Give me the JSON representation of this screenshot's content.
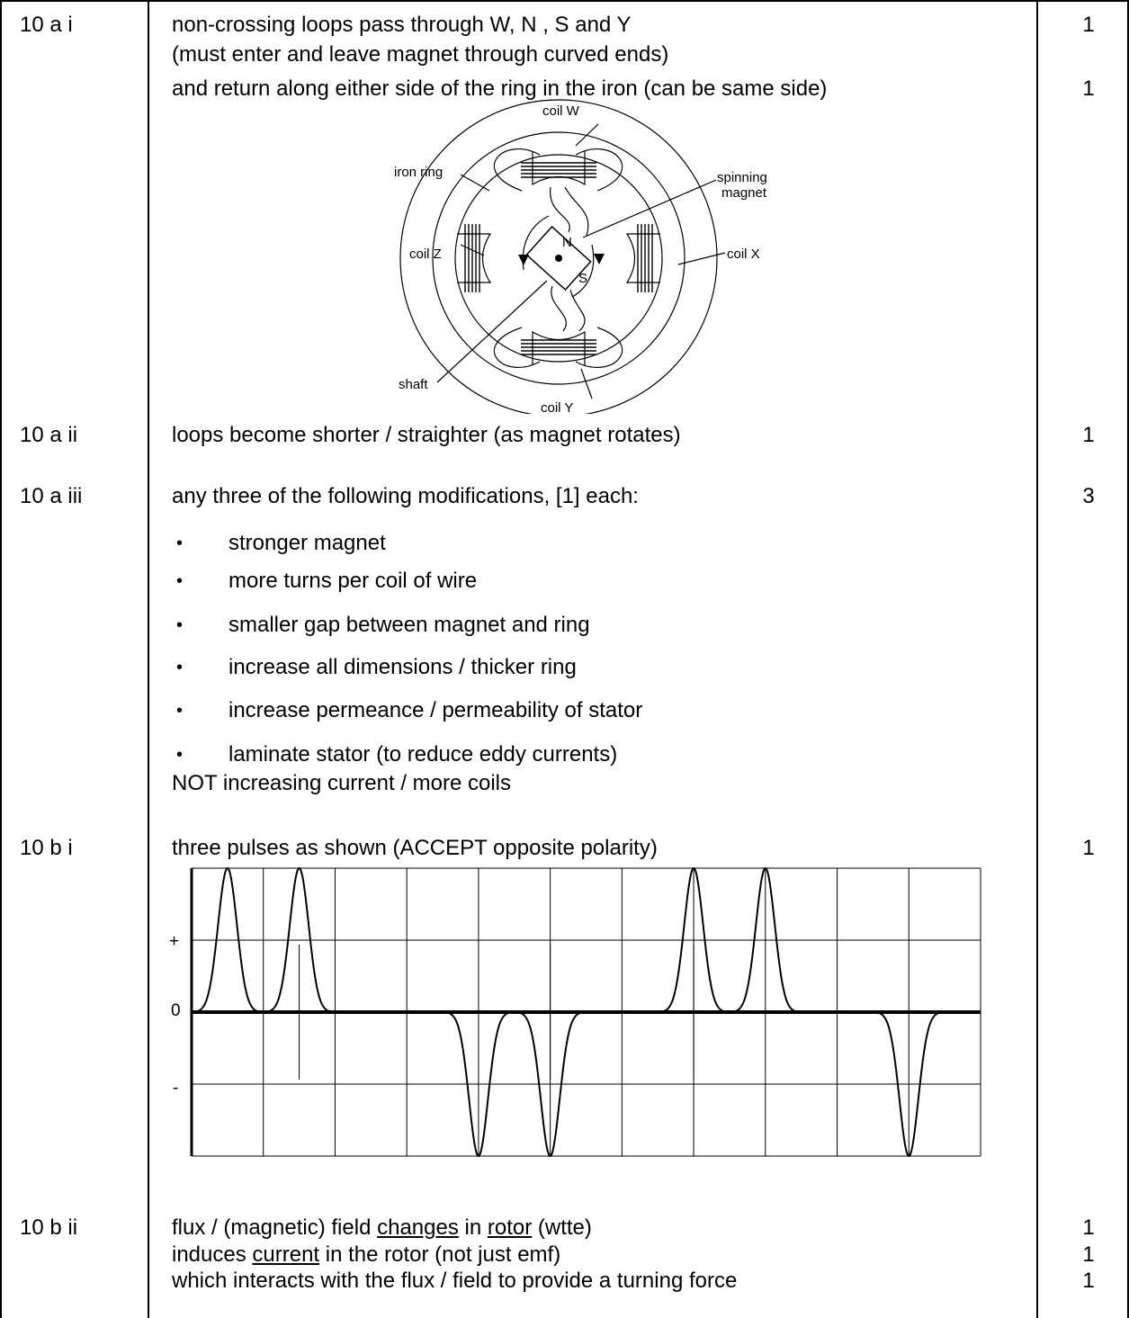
{
  "rows": {
    "a_i": {
      "question": "10 a i",
      "lines": [
        "non-crossing loops pass through W, N , S and Y",
        "(must enter and leave magnet through curved ends)",
        "and return along either side of the ring in the iron (can be same side)"
      ],
      "marks": [
        "1",
        "1"
      ]
    },
    "diagram": {
      "labels": {
        "coil_w": "coil W",
        "iron_ring": "iron ring",
        "spinning_magnet": [
          "spinning",
          "magnet"
        ],
        "coil_z": "coil Z",
        "coil_x": "coil X",
        "n": "N",
        "s": "S",
        "shaft": "shaft",
        "coil_y": "coil Y"
      }
    },
    "a_ii": {
      "question": "10 a ii",
      "text": "loops become shorter / straighter (as magnet rotates)",
      "mark": "1"
    },
    "a_iii": {
      "question": "10 a iii",
      "intro": "any three of the following modifications, [1] each:",
      "mark": "3",
      "bullet_symbol": "•",
      "bullets": [
        "stronger magnet",
        "more turns per coil of wire",
        "smaller gap between magnet and ring",
        "increase all dimensions / thicker ring",
        "increase permeance / permeability of stator",
        "laminate stator (to reduce eddy currents)"
      ],
      "not_line": "NOT increasing current / more coils"
    },
    "b_i": {
      "question": "10 b i",
      "text": "three pulses as shown (ACCEPT opposite polarity)",
      "mark": "1"
    },
    "b_ii": {
      "question": "10 b ii",
      "line1": {
        "a": "flux / (magnetic) field ",
        "b": "changes",
        "c": " in ",
        "d": "rotor",
        "e": " (wtte)"
      },
      "line2": {
        "a": "induces ",
        "b": "current",
        "c": " in the rotor (not just emf)"
      },
      "line3": "which interacts with the flux / field to provide a turning force",
      "marks": [
        "1",
        "1",
        "1"
      ]
    }
  },
  "chart_data": {
    "type": "line",
    "y_tick_labels": [
      "+",
      "0",
      "-"
    ],
    "grid": true,
    "grid_columns": 11,
    "grid_rows": 4,
    "x": [
      0.5,
      1.5,
      4.0,
      5.0,
      7.0,
      8.0,
      10.0
    ],
    "pulse_sign": [
      1,
      1,
      -1,
      -1,
      1,
      1,
      -1
    ],
    "marker_lines_at": [
      1.5,
      5.0,
      7.0
    ],
    "ylim": [
      -1,
      1
    ]
  }
}
